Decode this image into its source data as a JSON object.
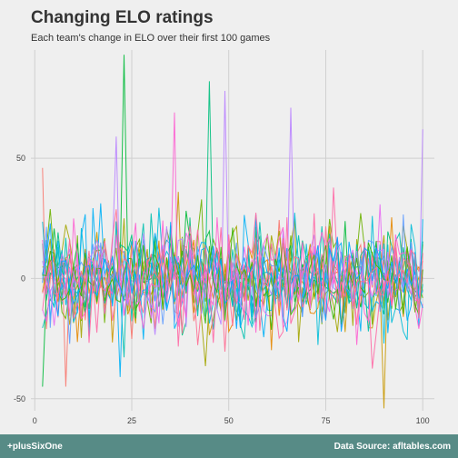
{
  "title": "Changing ELO ratings",
  "subtitle": "Each team's change in ELO over their first 100 games",
  "footer": {
    "left": "+plusSixOne",
    "right": "Data Source: afltables.com"
  },
  "colors": {
    "background": "#efefef",
    "grid": "#cfcfcf",
    "footer": "#578b86",
    "series": [
      "#f8766d",
      "#e58700",
      "#c99800",
      "#a3a500",
      "#6bb100",
      "#00ba38",
      "#00bf7d",
      "#00c0af",
      "#00bcd8",
      "#00b0f6",
      "#619cff",
      "#b983ff",
      "#e76bf3",
      "#fd61d1",
      "#ff67a4",
      "#39b600",
      "#00a5ff",
      "#ff6c91"
    ]
  },
  "chart_data": {
    "type": "line",
    "title": "Changing ELO ratings",
    "subtitle": "Each team's change in ELO over their first 100 games",
    "xlabel": "",
    "ylabel": "",
    "xlim": [
      -1,
      103
    ],
    "ylim": [
      -55,
      95
    ],
    "x_ticks": [
      0,
      25,
      50,
      75,
      100
    ],
    "y_ticks": [
      50,
      0,
      -50
    ],
    "x_tick_labels": [
      "0",
      "25",
      "50",
      "75",
      "100"
    ],
    "y_tick_labels": [
      "50",
      "0",
      "-50"
    ],
    "grid": true,
    "legend": "none",
    "series_count": 18,
    "x_range": [
      2,
      100
    ],
    "peaks": [
      {
        "series": 5,
        "x": 23,
        "y": 93
      },
      {
        "series": 6,
        "x": 45,
        "y": 82
      },
      {
        "series": 11,
        "x": 49,
        "y": 78
      },
      {
        "series": 13,
        "x": 36,
        "y": 69
      },
      {
        "series": 11,
        "x": 66,
        "y": 71
      },
      {
        "series": 11,
        "x": 100,
        "y": 62
      },
      {
        "series": 11,
        "x": 21,
        "y": 59
      },
      {
        "series": 0,
        "x": 2,
        "y": 46
      },
      {
        "series": 2,
        "x": 90,
        "y": -54
      },
      {
        "series": 5,
        "x": 2,
        "y": -45
      },
      {
        "series": 0,
        "x": 8,
        "y": -45
      },
      {
        "series": 9,
        "x": 22,
        "y": -41
      }
    ]
  }
}
